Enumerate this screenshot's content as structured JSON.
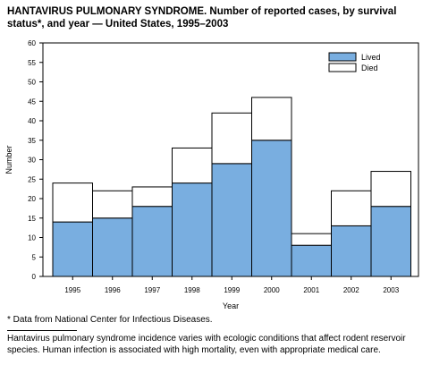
{
  "title": "HANTAVIRUS PULMONARY SYNDROME. Number of reported cases, by survival status*, and year — United States, 1995–2003",
  "footnote": "* Data from National Center for Infectious Diseases.",
  "caption": "Hantavirus pulmonary syndrome incidence varies with ecologic conditions that affect rodent reservoir species. Human infection is associated with high mortality, even with appropriate medical care.",
  "colors": {
    "lived": "#79aee0",
    "died": "#ffffff",
    "stroke": "#000000"
  },
  "chart_data": {
    "type": "bar",
    "stacked": true,
    "categories": [
      "1995",
      "1996",
      "1997",
      "1998",
      "1999",
      "2000",
      "2001",
      "2002",
      "2003"
    ],
    "series": [
      {
        "name": "Lived",
        "values": [
          14,
          15,
          18,
          24,
          29,
          35,
          8,
          13,
          18
        ]
      },
      {
        "name": "Died",
        "values": [
          10,
          7,
          5,
          9,
          13,
          11,
          3,
          9,
          9
        ]
      }
    ],
    "xlabel": "Year",
    "ylabel": "Number",
    "ylim": [
      0,
      60
    ],
    "yticks": [
      "0",
      "5",
      "10",
      "15",
      "20",
      "25",
      "30",
      "35",
      "40",
      "45",
      "50",
      "55",
      "60"
    ],
    "legend": "top-right",
    "grid": false
  }
}
